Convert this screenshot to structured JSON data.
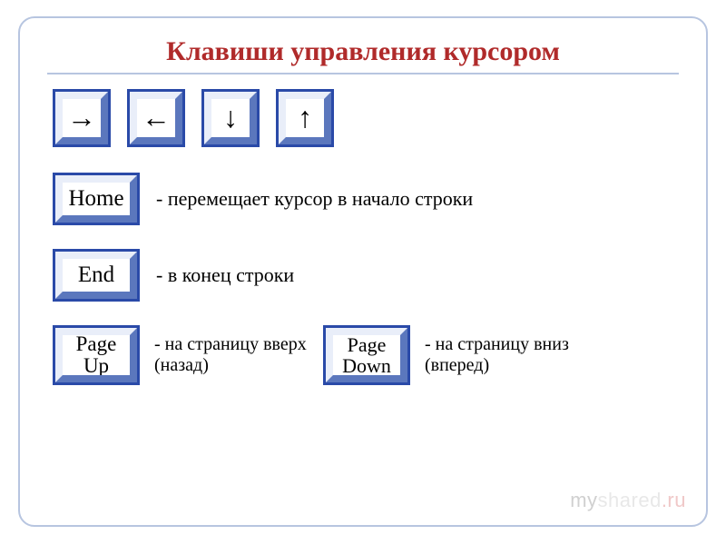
{
  "title": {
    "text": "Клавиши управления курсором",
    "color": "#b02a2a",
    "fontsize": 30
  },
  "divider_color": "#b7c5e0",
  "frame_border_color": "#b7c5e0",
  "key_style": {
    "outer_border_color": "#2a4aa8",
    "outer_border_width": 3,
    "bevel_light": "#e9eef9",
    "bevel_dark": "#5b77bd",
    "bevel_width": 8,
    "face_color": "#ffffff",
    "text_color": "#000000"
  },
  "arrow_keys": {
    "size": 64,
    "glyph_fontsize": 32,
    "items": [
      {
        "name": "arrow-right-key",
        "glyph": "→"
      },
      {
        "name": "arrow-left-key",
        "glyph": "←"
      },
      {
        "name": "arrow-down-key",
        "glyph": "↓"
      },
      {
        "name": "arrow-up-key",
        "glyph": "↑"
      }
    ]
  },
  "rows": [
    {
      "key": {
        "name": "home-key",
        "label": "Home",
        "width": 96,
        "height": 58,
        "fontsize": 25
      },
      "desc": "- перемещает курсор в начало строки"
    },
    {
      "key": {
        "name": "end-key",
        "label": "End",
        "width": 96,
        "height": 58,
        "fontsize": 25
      },
      "desc": "- в конец строки"
    }
  ],
  "bottom": [
    {
      "key": {
        "name": "pageup-key",
        "label": "Page\nUp",
        "width": 96,
        "height": 66,
        "fontsize": 23
      },
      "desc": "- на страницу вверх (назад)"
    },
    {
      "key": {
        "name": "pagedown-key",
        "label": "Page\nDown",
        "width": 96,
        "height": 66,
        "fontsize": 22
      },
      "desc": "- на страницу вниз (вперед)"
    }
  ],
  "watermark": {
    "my": "my",
    "shared": "shared",
    "ru": ".ru"
  }
}
